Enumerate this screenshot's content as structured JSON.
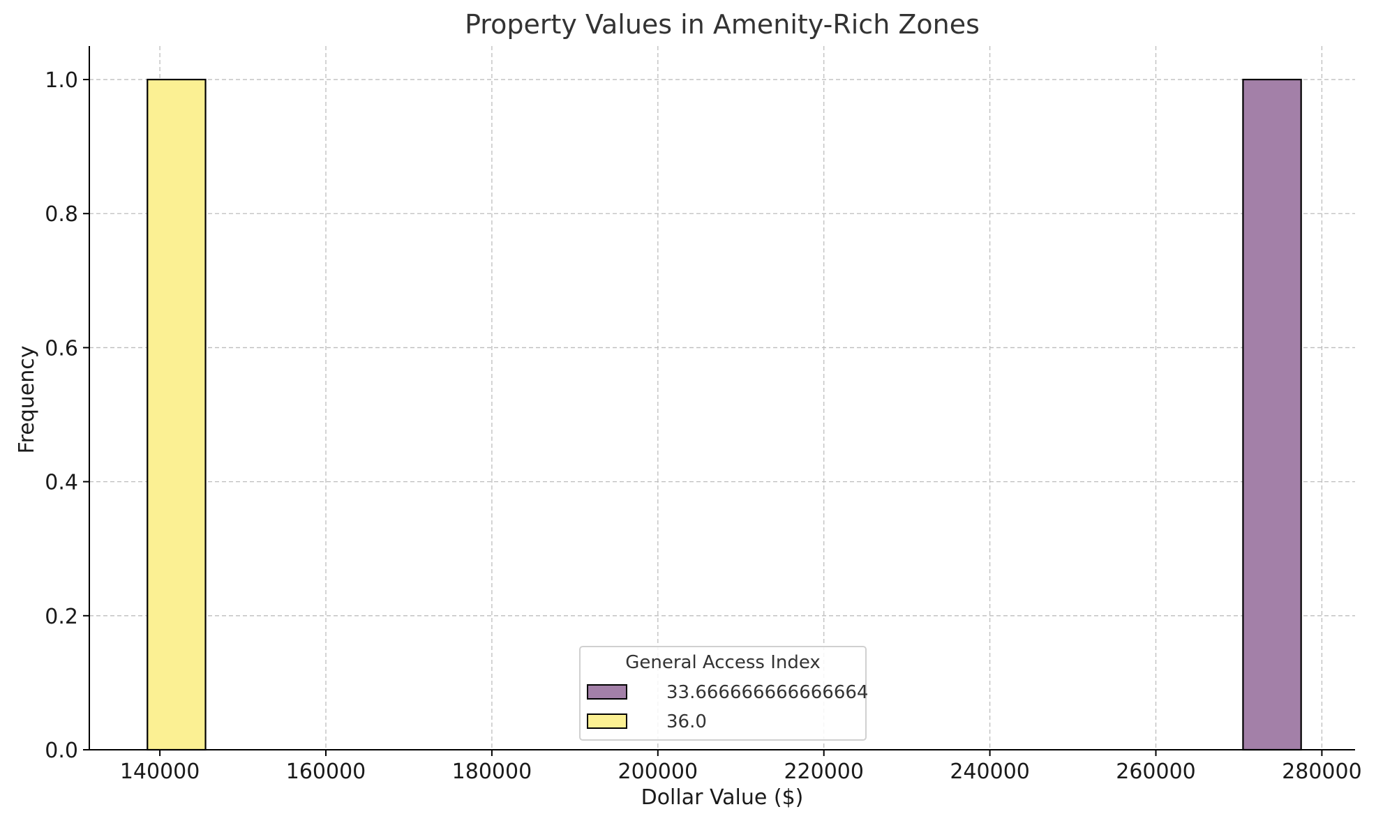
{
  "chart_data": {
    "type": "bar",
    "title": "Property Values in Amenity-Rich Zones",
    "xlabel": "Dollar Value ($)",
    "ylabel": "Frequency",
    "xlim": [
      131500,
      284000
    ],
    "ylim": [
      0,
      1.05
    ],
    "grid": true,
    "x_ticks": [
      "140000",
      "160000",
      "180000",
      "200000",
      "220000",
      "240000",
      "260000",
      "280000"
    ],
    "y_ticks": [
      "0.0",
      "0.2",
      "0.4",
      "0.6",
      "0.8",
      "1.0"
    ],
    "legend": {
      "title": "General Access Index",
      "placement": "lower center"
    },
    "series": [
      {
        "name": "33.666666666666664",
        "color": "#a380a8",
        "bins": [
          {
            "x_start": 270500,
            "x_end": 277500,
            "value": 1.0
          }
        ]
      },
      {
        "name": "36.0",
        "color": "#fbf093",
        "bins": [
          {
            "x_start": 138500,
            "x_end": 145500,
            "value": 1.0
          }
        ]
      }
    ]
  }
}
